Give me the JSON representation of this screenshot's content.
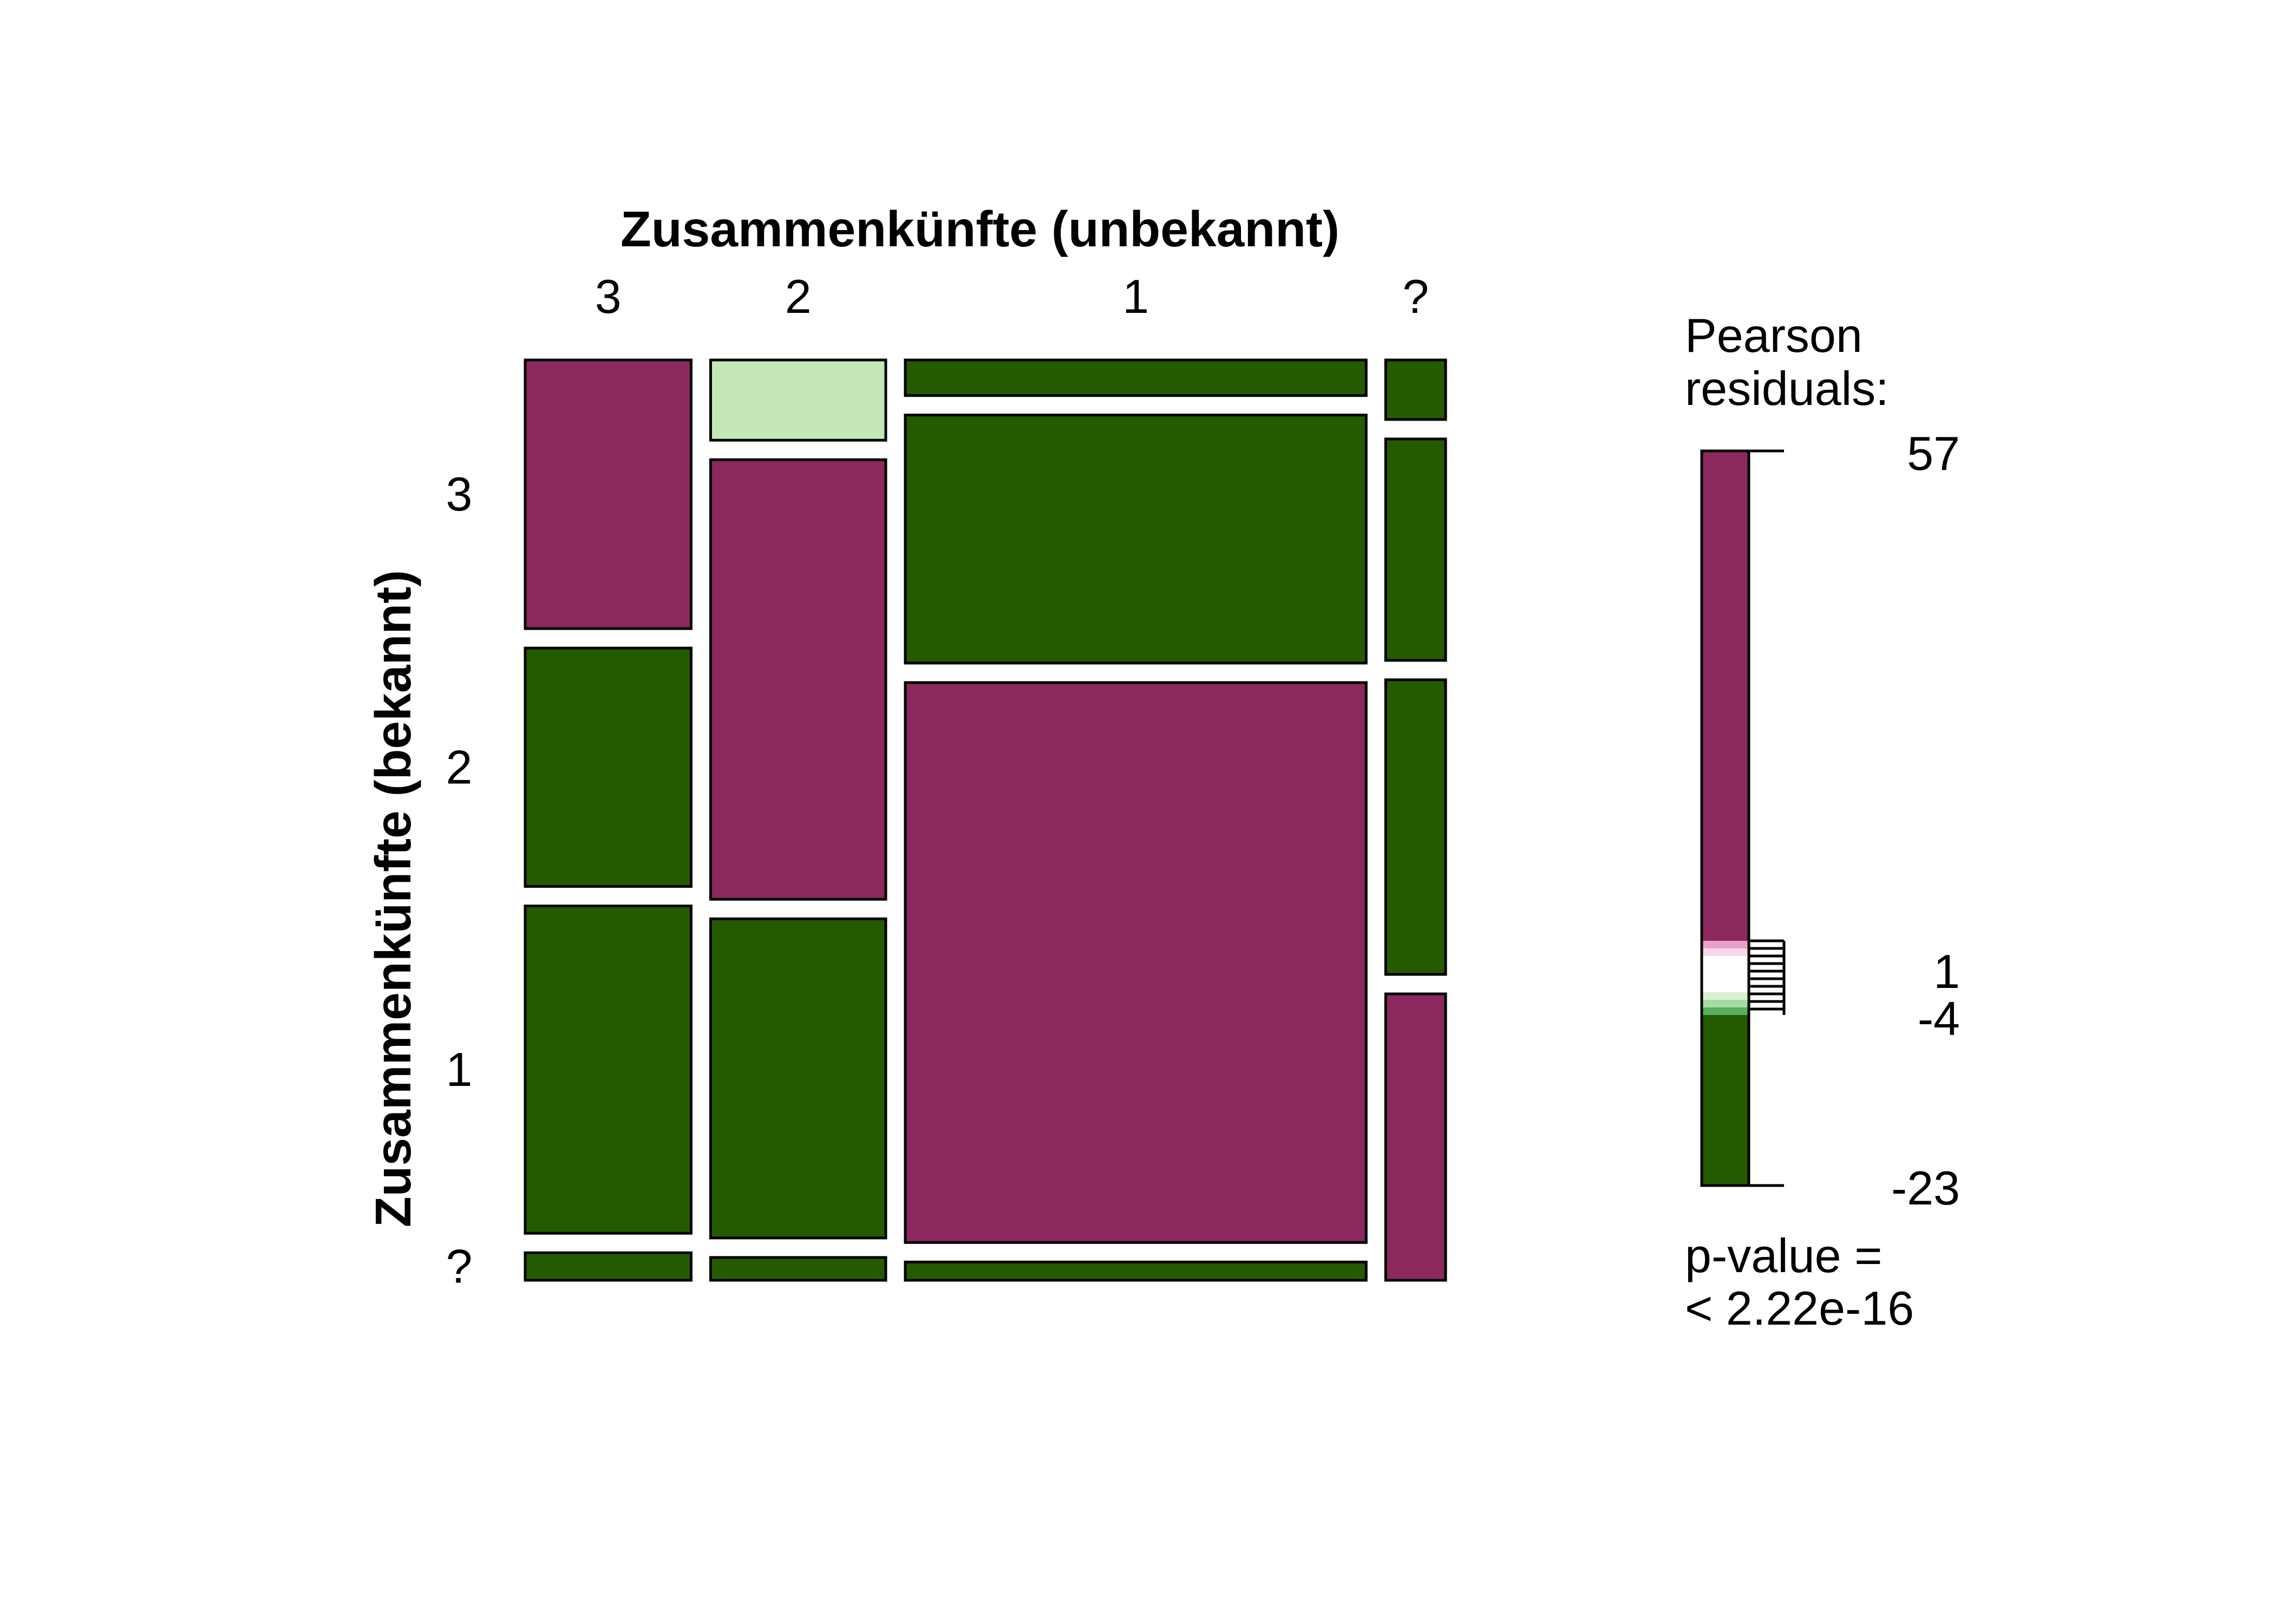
{
  "chart_data": {
    "type": "mosaic",
    "xlabel": "Zusammenkünfte (unbekannt)",
    "ylabel": "Zusammenkünfte (bekannt)",
    "columns": [
      {
        "label": "3",
        "share": 0.18,
        "cells": [
          {
            "row": "3",
            "share": 0.293,
            "residual": 57
          },
          {
            "row": "2",
            "share": 0.26,
            "residual": -23
          },
          {
            "row": "1",
            "share": 0.357,
            "residual": -23
          },
          {
            "row": "?",
            "share": 0.03,
            "residual": -23
          }
        ]
      },
      {
        "label": "2",
        "share": 0.19,
        "cells": [
          {
            "row": "3",
            "share": 0.088,
            "residual": -2
          },
          {
            "row": "2",
            "share": 0.482,
            "residual": 57
          },
          {
            "row": "1",
            "share": 0.35,
            "residual": -23
          },
          {
            "row": "?",
            "share": 0.025,
            "residual": -23
          }
        ]
      },
      {
        "label": "1",
        "share": 0.5,
        "cells": [
          {
            "row": "3",
            "share": 0.039,
            "residual": -23
          },
          {
            "row": "2",
            "share": 0.272,
            "residual": -23
          },
          {
            "row": "1",
            "share": 0.614,
            "residual": 57
          },
          {
            "row": "?",
            "share": 0.02,
            "residual": -23
          }
        ]
      },
      {
        "label": "?",
        "share": 0.065,
        "cells": [
          {
            "row": "3",
            "share": 0.065,
            "residual": -23
          },
          {
            "row": "2",
            "share": 0.242,
            "residual": -23
          },
          {
            "row": "1",
            "share": 0.322,
            "residual": -23
          },
          {
            "row": "?",
            "share": 0.313,
            "residual": 57
          }
        ]
      }
    ],
    "rows": [
      "3",
      "2",
      "1",
      "?"
    ],
    "row_tick_labels": [
      "3",
      "2",
      "1",
      "?"
    ],
    "legend": {
      "title_line1": "Pearson",
      "title_line2": "residuals:",
      "max": "57",
      "upper": "1",
      "lower": "-4",
      "min": "-23",
      "pvalue_line1": "p-value =",
      "pvalue_line2": "< 2.22e-16"
    },
    "colors": {
      "strong_positive": "#8b285e",
      "strong_negative": "#245b00",
      "weak_negative": "#c3e8b6",
      "light_positive_1": "#e9a3c9",
      "light_positive_2": "#f7d8e8",
      "neutral": "#ffffff",
      "light_negative_1": "#d9f0d3",
      "light_negative_2": "#a6dba0",
      "light_negative_3": "#5aae61",
      "border": "#000000"
    }
  }
}
